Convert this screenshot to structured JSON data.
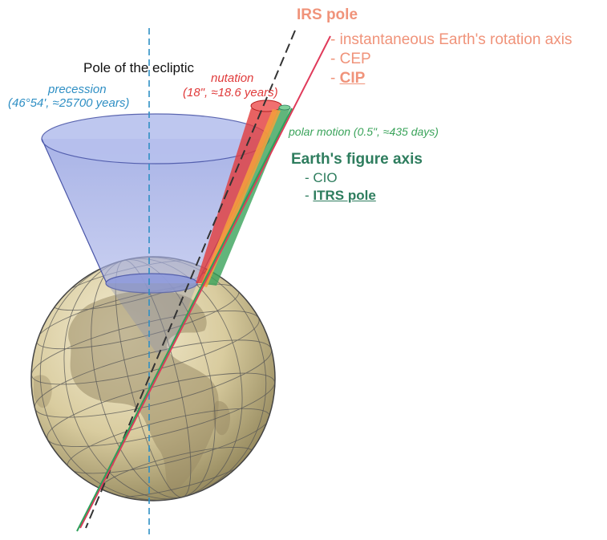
{
  "title": "Pole of the ecliptic",
  "precession": {
    "label": "precession",
    "detail": "(46°54', ≈25700 years)"
  },
  "nutation": {
    "label": "nutation",
    "detail": "(18\", ≈18.6 years)"
  },
  "polar_motion": {
    "label": "polar motion (0.5\", ≈435 days)"
  },
  "irs_pole": {
    "heading": "IRS pole",
    "items": [
      "- instantaneous Earth's rotation axis",
      "- CEP",
      "CIP"
    ],
    "cip_dash": "- "
  },
  "figure_axis": {
    "heading": "Earth's figure axis",
    "items": [
      "- CIO",
      "ITRS pole"
    ],
    "itrs_dash": "- "
  },
  "colors": {
    "precession": "#2f8fc4",
    "nutation": "#e03a3a",
    "irs": "#f0937a",
    "figure_axis": "#2e7d5e",
    "polar_motion": "#3aa35a",
    "cone": "#7f8fd8"
  },
  "icons": {
    "globe": "earth-globe-icon"
  }
}
